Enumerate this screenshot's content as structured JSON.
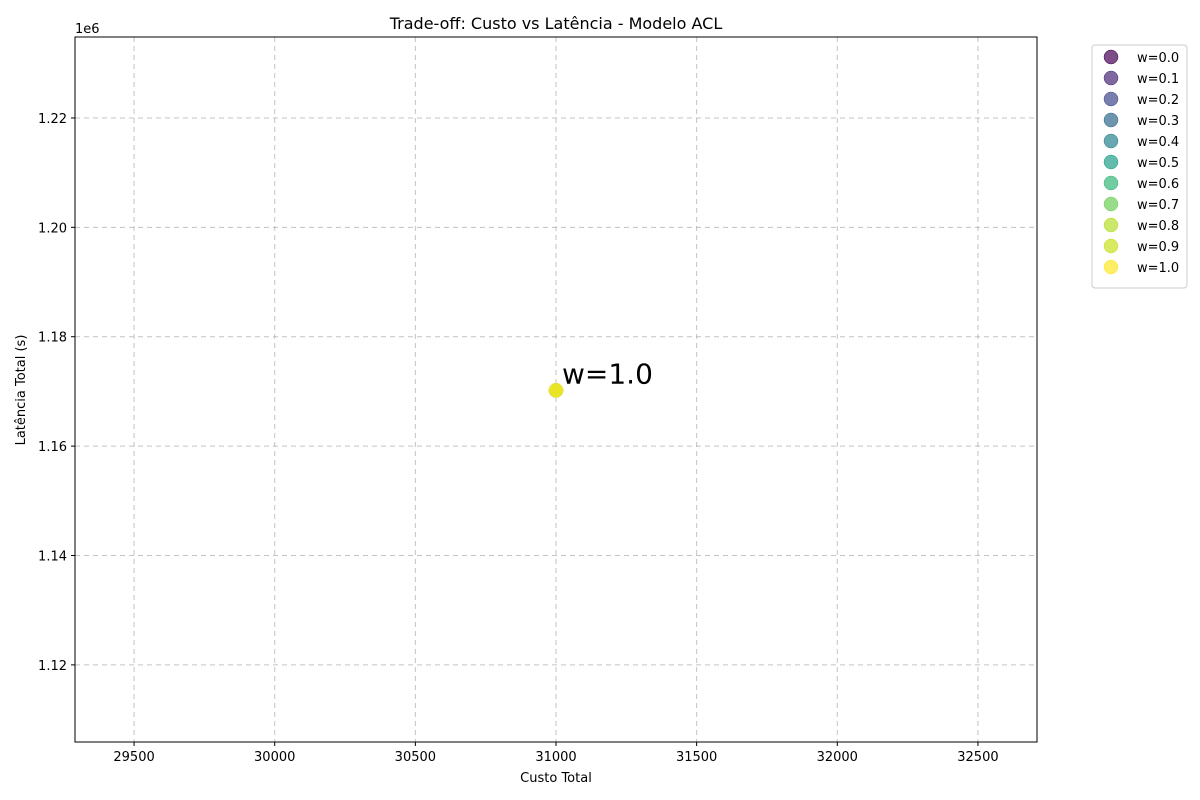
{
  "chart_data": {
    "type": "scatter",
    "title": "Trade-off: Custo vs Latência - Modelo ACL",
    "xlabel": "Custo Total",
    "ylabel": "Latência Total (s)",
    "y_offset_label": "1e6",
    "y_scale": 1000000,
    "xlim": [
      29290,
      32710
    ],
    "ylim": [
      1105900,
      1234800
    ],
    "x_ticks": [
      29500,
      30000,
      30500,
      31000,
      31500,
      32000,
      32500
    ],
    "x_tick_labels": [
      "29500",
      "30000",
      "30500",
      "31000",
      "31500",
      "32000",
      "32500"
    ],
    "y_ticks": [
      1120000,
      1140000,
      1160000,
      1180000,
      1200000,
      1220000
    ],
    "y_tick_labels": [
      "1.12",
      "1.14",
      "1.16",
      "1.18",
      "1.20",
      "1.22"
    ],
    "grid": true,
    "legend_position": "outside-right-top",
    "series": [
      {
        "name": "w=0.0",
        "color": "#440154",
        "x": [
          31000
        ],
        "y": [
          1170200
        ]
      },
      {
        "name": "w=0.1",
        "color": "#482878",
        "x": [
          31000
        ],
        "y": [
          1170200
        ]
      },
      {
        "name": "w=0.2",
        "color": "#3e4989",
        "x": [
          31000
        ],
        "y": [
          1170200
        ]
      },
      {
        "name": "w=0.3",
        "color": "#31688e",
        "x": [
          31000
        ],
        "y": [
          1170200
        ]
      },
      {
        "name": "w=0.4",
        "color": "#26828e",
        "x": [
          31000
        ],
        "y": [
          1170200
        ]
      },
      {
        "name": "w=0.5",
        "color": "#1f9e89",
        "x": [
          31000
        ],
        "y": [
          1170200
        ]
      },
      {
        "name": "w=0.6",
        "color": "#35b779",
        "x": [
          31000
        ],
        "y": [
          1170200
        ]
      },
      {
        "name": "w=0.7",
        "color": "#6ece58",
        "x": [
          31000
        ],
        "y": [
          1170200
        ]
      },
      {
        "name": "w=0.8",
        "color": "#b5de2b",
        "x": [
          31000
        ],
        "y": [
          1170200
        ]
      },
      {
        "name": "w=0.9",
        "color": "#c8e020",
        "x": [
          31000
        ],
        "y": [
          1170200
        ]
      },
      {
        "name": "w=1.0",
        "color": "#fde725",
        "x": [
          31000
        ],
        "y": [
          1170200
        ]
      }
    ],
    "annotations": [
      {
        "text": "w=1.0",
        "x": 31000,
        "y": 1170200
      }
    ]
  }
}
